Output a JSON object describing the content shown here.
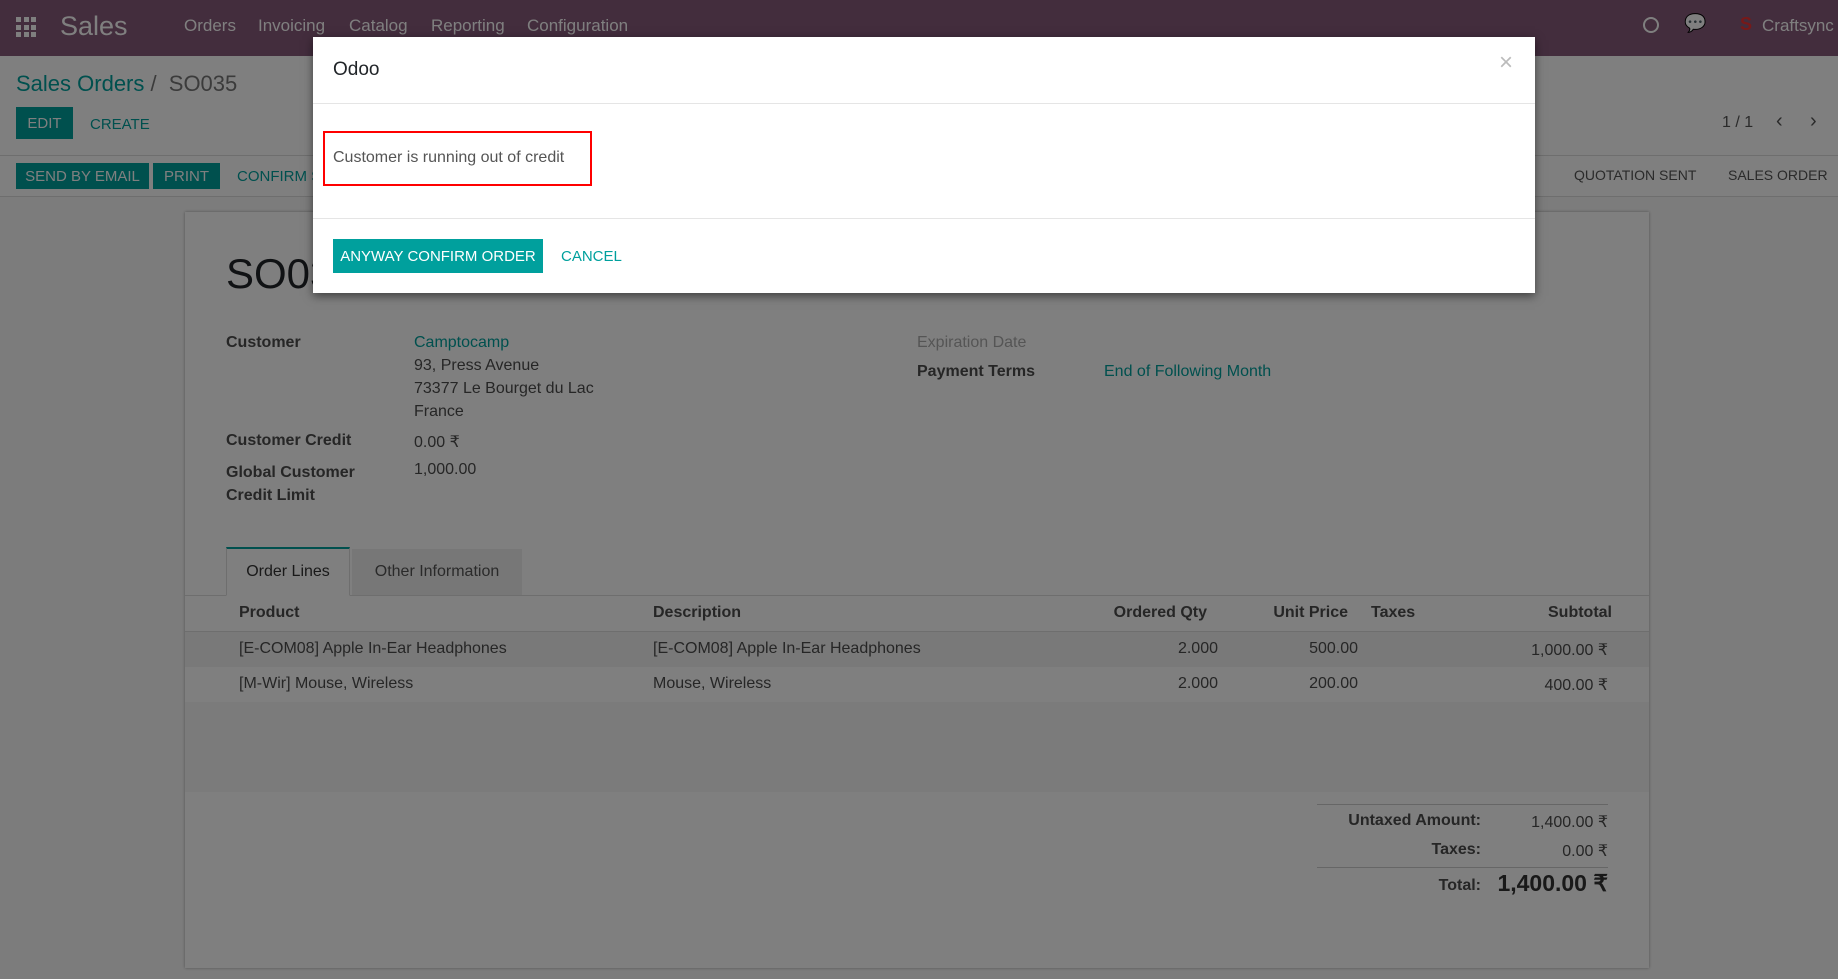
{
  "navbar": {
    "app_title": "Sales",
    "menu": [
      "Orders",
      "Invoicing",
      "Catalog",
      "Reporting",
      "Configuration"
    ],
    "company": "Craftsync"
  },
  "breadcrumb": {
    "parent": "Sales Orders",
    "current": "SO035",
    "separator": "/"
  },
  "control": {
    "edit": "EDIT",
    "create": "CREATE",
    "pager": "1 / 1"
  },
  "statusbar": {
    "buttons": [
      "SEND BY EMAIL",
      "PRINT",
      "CONFIRM SALE"
    ],
    "stages": [
      "QUOTATION SENT",
      "SALES ORDER"
    ]
  },
  "form": {
    "name": "SO035",
    "customer_label": "Customer",
    "customer_name": "Camptocamp",
    "address": [
      "93, Press Avenue",
      "73377 Le Bourget du Lac",
      "France"
    ],
    "credit_label": "Customer Credit",
    "credit_value": "0.00 ₹",
    "limit_label_1": "Global Customer",
    "limit_label_2": "Credit Limit",
    "limit_value": "1,000.00",
    "expiration_label": "Expiration Date",
    "terms_label": "Payment Terms",
    "terms_value": "End of Following Month"
  },
  "tabs": [
    "Order Lines",
    "Other Information"
  ],
  "table": {
    "headers": [
      "Product",
      "Description",
      "Ordered Qty",
      "Unit Price",
      "Taxes",
      "Subtotal"
    ],
    "rows": [
      [
        "[E-COM08] Apple In-Ear Headphones",
        "[E-COM08] Apple In-Ear Headphones",
        "2.000",
        "500.00",
        "",
        "1,000.00 ₹"
      ],
      [
        "[M-Wir] Mouse, Wireless",
        "Mouse, Wireless",
        "2.000",
        "200.00",
        "",
        "400.00 ₹"
      ]
    ]
  },
  "totals": {
    "untaxed_label": "Untaxed Amount:",
    "untaxed": "1,400.00 ₹",
    "taxes_label": "Taxes:",
    "taxes": "0.00 ₹",
    "total_label": "Total:",
    "total": "1,400.00 ₹"
  },
  "dialog": {
    "title": "Odoo",
    "message": "Customer is running out of credit",
    "confirm": "ANYWAY CONFIRM ORDER",
    "cancel": "CANCEL",
    "close": "×"
  },
  "colors": {
    "brand": "#875a7b",
    "primary": "#00a09d",
    "highlight": "#ff0000"
  }
}
